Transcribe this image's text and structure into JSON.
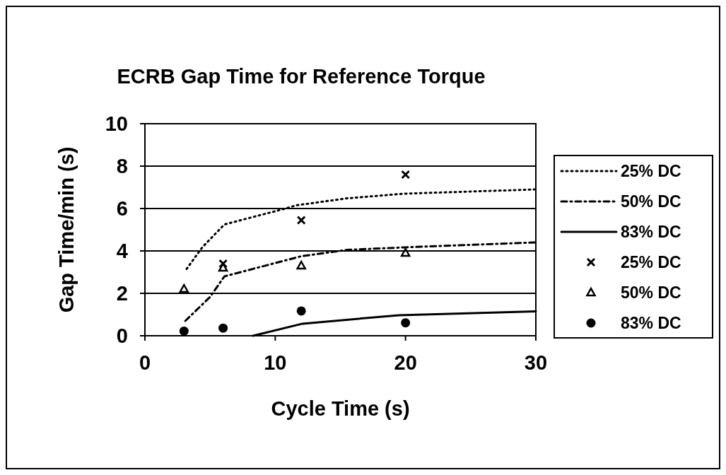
{
  "chart_data": {
    "type": "scatter",
    "title": "ECRB Gap Time for Reference Torque",
    "xlabel": "Cycle Time (s)",
    "ylabel": "Gap Time/min (s)",
    "xlim": [
      0,
      30
    ],
    "xticks": [
      0,
      10,
      20,
      30
    ],
    "ylim": [
      0,
      10
    ],
    "yticks": [
      0,
      2,
      4,
      6,
      8,
      10
    ],
    "grid": "y",
    "legend": "right",
    "series": [
      {
        "name": "25% DC",
        "type": "line",
        "line_style": "dotted",
        "marker": "none",
        "color": "#000000",
        "x": [
          3.2,
          4.4,
          6.1,
          10.8,
          11.6,
          15.5,
          19.9,
          30
        ],
        "values": [
          3.15,
          4.17,
          5.25,
          6.0,
          6.15,
          6.48,
          6.7,
          6.9
        ]
      },
      {
        "name": "50% DC",
        "type": "line",
        "line_style": "dashdot",
        "marker": "none",
        "color": "#000000",
        "x": [
          3.1,
          5,
          6.1,
          12,
          15.5,
          20,
          30
        ],
        "values": [
          0.7,
          1.83,
          2.8,
          3.75,
          4.05,
          4.17,
          4.4
        ]
      },
      {
        "name": "83% DC",
        "type": "line",
        "line_style": "solid",
        "marker": "none",
        "color": "#000000",
        "x": [
          8.3,
          12.1,
          19.5,
          30
        ],
        "values": [
          0,
          0.57,
          0.97,
          1.15
        ]
      },
      {
        "name": "25% DC",
        "marker": "cross",
        "color": "#000000",
        "x": [
          6,
          12,
          20
        ],
        "values": [
          3.4,
          5.45,
          7.6
        ]
      },
      {
        "name": "50% DC",
        "marker": "triangle",
        "color": "#000000",
        "x": [
          3,
          6,
          12,
          20
        ],
        "values": [
          2.2,
          3.2,
          3.3,
          3.9
        ]
      },
      {
        "name": "83% DC",
        "marker": "circle",
        "color": "#000000",
        "x": [
          3,
          6,
          12,
          20
        ],
        "values": [
          0.22,
          0.36,
          1.17,
          0.61
        ]
      }
    ]
  }
}
